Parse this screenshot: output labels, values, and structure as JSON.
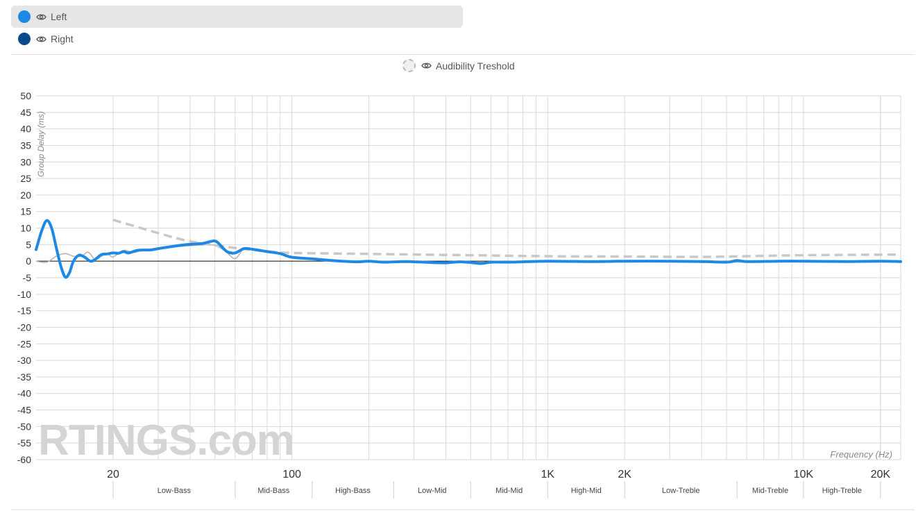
{
  "legend": {
    "series": [
      {
        "label": "Left",
        "color": "#1e88e5",
        "active": true
      },
      {
        "label": "Right",
        "color": "#0a4a8a",
        "active": false
      }
    ],
    "threshold_label": "Audibility Treshold"
  },
  "watermark": "RTINGS.com",
  "chart_data": {
    "type": "line",
    "ylabel": "Group Delay (ms)",
    "xlabel": "Frequency (Hz)",
    "x_scale": "log",
    "xlim": [
      10,
      24000
    ],
    "ylim": [
      -60,
      50
    ],
    "y_ticks": [
      50,
      45,
      40,
      35,
      30,
      25,
      20,
      15,
      10,
      5,
      0,
      -5,
      -10,
      -15,
      -20,
      -25,
      -30,
      -35,
      -40,
      -45,
      -50,
      -55,
      -60
    ],
    "x_tick_labels": [
      {
        "value": 20,
        "label": "20"
      },
      {
        "value": 100,
        "label": "100"
      },
      {
        "value": 1000,
        "label": "1K"
      },
      {
        "value": 2000,
        "label": "2K"
      },
      {
        "value": 10000,
        "label": "10K"
      },
      {
        "value": 20000,
        "label": "20K"
      }
    ],
    "grid": true,
    "bands": [
      {
        "label": "Low-Bass",
        "from": 20,
        "to": 60
      },
      {
        "label": "Mid-Bass",
        "from": 60,
        "to": 120
      },
      {
        "label": "High-Bass",
        "from": 120,
        "to": 250
      },
      {
        "label": "Low-Mid",
        "from": 250,
        "to": 500
      },
      {
        "label": "Mid-Mid",
        "from": 500,
        "to": 1000
      },
      {
        "label": "High-Mid",
        "from": 1000,
        "to": 2000
      },
      {
        "label": "Low-Treble",
        "from": 2000,
        "to": 5500
      },
      {
        "label": "Mid-Treble",
        "from": 5500,
        "to": 10000
      },
      {
        "label": "High-Treble",
        "from": 10000,
        "to": 20000
      }
    ],
    "series": [
      {
        "name": "Left",
        "color": "#1e88e5",
        "points": [
          [
            10,
            3.5
          ],
          [
            10.5,
            9
          ],
          [
            11,
            12.3
          ],
          [
            11.5,
            10
          ],
          [
            12,
            4
          ],
          [
            12.5,
            -1.5
          ],
          [
            13,
            -4.8
          ],
          [
            13.5,
            -3.5
          ],
          [
            14,
            0
          ],
          [
            14.7,
            1.8
          ],
          [
            15.5,
            1.2
          ],
          [
            16.3,
            0
          ],
          [
            17,
            0.5
          ],
          [
            18,
            2
          ],
          [
            19,
            2.2
          ],
          [
            20,
            2.5
          ],
          [
            21,
            2.4
          ],
          [
            22,
            2.9
          ],
          [
            23,
            2.5
          ],
          [
            25,
            3.3
          ],
          [
            28,
            3.4
          ],
          [
            30,
            3.8
          ],
          [
            35,
            4.6
          ],
          [
            40,
            5.1
          ],
          [
            45,
            5.4
          ],
          [
            50,
            6.1
          ],
          [
            53,
            4.5
          ],
          [
            56,
            2.8
          ],
          [
            60,
            2.5
          ],
          [
            65,
            3.8
          ],
          [
            70,
            3.6
          ],
          [
            80,
            2.9
          ],
          [
            90,
            2.3
          ],
          [
            100,
            1.2
          ],
          [
            120,
            0.7
          ],
          [
            150,
            0.1
          ],
          [
            180,
            -0.2
          ],
          [
            200,
            0
          ],
          [
            230,
            -0.3
          ],
          [
            280,
            -0.1
          ],
          [
            350,
            -0.4
          ],
          [
            400,
            -0.5
          ],
          [
            450,
            -0.2
          ],
          [
            500,
            -0.4
          ],
          [
            550,
            -0.7
          ],
          [
            600,
            -0.3
          ],
          [
            700,
            -0.3
          ],
          [
            800,
            -0.2
          ],
          [
            1000,
            0
          ],
          [
            1500,
            -0.1
          ],
          [
            2000,
            0
          ],
          [
            3000,
            0
          ],
          [
            4000,
            -0.1
          ],
          [
            5000,
            -0.3
          ],
          [
            5500,
            0.2
          ],
          [
            6000,
            -0.1
          ],
          [
            8000,
            0
          ],
          [
            10000,
            0
          ],
          [
            15000,
            -0.1
          ],
          [
            20000,
            0
          ],
          [
            24000,
            -0.1
          ]
        ]
      },
      {
        "name": "Right",
        "color": "#0a4a8a",
        "points": [
          [
            10,
            0
          ],
          [
            11,
            -0.3
          ],
          [
            12,
            1.5
          ],
          [
            13,
            2.3
          ],
          [
            14,
            1.5
          ],
          [
            15,
            1.5
          ],
          [
            16,
            2.7
          ],
          [
            17,
            0.5
          ],
          [
            18,
            1.5
          ],
          [
            19,
            2.2
          ],
          [
            20,
            1.3
          ],
          [
            22,
            3.3
          ],
          [
            24,
            2.6
          ],
          [
            26,
            3.3
          ],
          [
            30,
            3.6
          ],
          [
            35,
            4.3
          ],
          [
            40,
            4.7
          ],
          [
            45,
            4.9
          ],
          [
            50,
            4.8
          ],
          [
            55,
            3
          ],
          [
            60,
            0.8
          ],
          [
            65,
            3.8
          ],
          [
            70,
            3.6
          ],
          [
            80,
            3
          ],
          [
            90,
            2.3
          ],
          [
            100,
            1.2
          ],
          [
            150,
            0.1
          ],
          [
            200,
            0
          ],
          [
            400,
            -0.4
          ],
          [
            600,
            -0.3
          ],
          [
            1000,
            0
          ],
          [
            2000,
            0
          ],
          [
            5000,
            -0.3
          ],
          [
            10000,
            0
          ],
          [
            24000,
            -0.1
          ]
        ]
      },
      {
        "name": "Audibility Treshold",
        "color": "#c8c8c8",
        "dashed": true,
        "points": [
          [
            20,
            12.5
          ],
          [
            30,
            8.5
          ],
          [
            40,
            6
          ],
          [
            60,
            4
          ],
          [
            80,
            3
          ],
          [
            100,
            2.5
          ],
          [
            200,
            2.2
          ],
          [
            500,
            1.8
          ],
          [
            1000,
            1.5
          ],
          [
            2000,
            1.4
          ],
          [
            4000,
            1.3
          ],
          [
            6000,
            1.5
          ],
          [
            10000,
            1.8
          ],
          [
            24000,
            2
          ]
        ]
      }
    ]
  }
}
